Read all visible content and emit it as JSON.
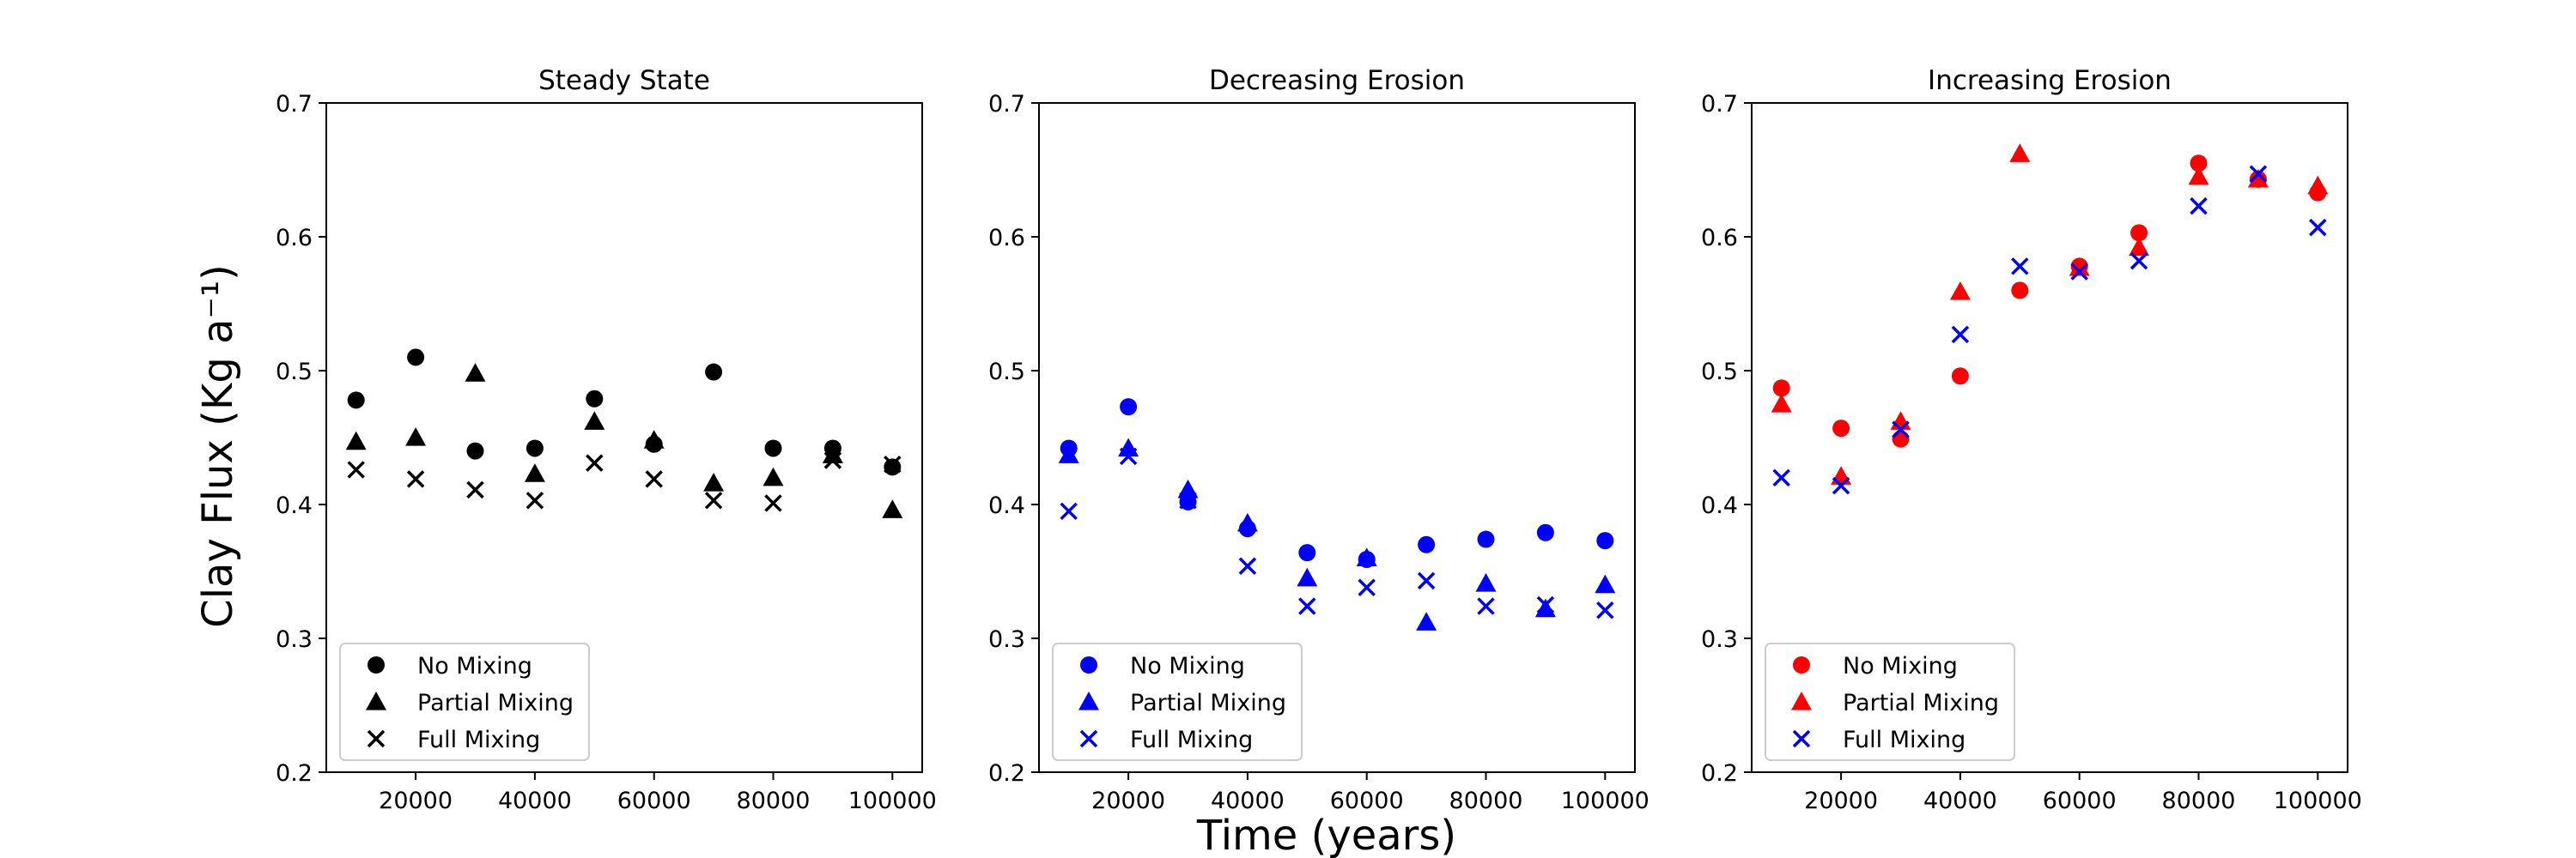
{
  "figure": {
    "ylabel": "Clay Flux (Kg a⁻¹)",
    "xlabel": "Time (years)"
  },
  "chart_data": [
    {
      "type": "scatter",
      "title": "Steady State",
      "xlabel": "",
      "ylabel": "",
      "xlim": [
        5000,
        105000
      ],
      "ylim": [
        0.2,
        0.7
      ],
      "xticks": [
        20000,
        40000,
        60000,
        80000,
        100000
      ],
      "yticks": [
        0.2,
        0.3,
        0.4,
        0.5,
        0.6,
        0.7
      ],
      "grid": false,
      "legend_position": "lower-left",
      "x": [
        10000,
        20000,
        30000,
        40000,
        50000,
        60000,
        70000,
        80000,
        90000,
        100000
      ],
      "series": [
        {
          "name": "No Mixing",
          "marker": "circle",
          "color": "#000000",
          "values": [
            0.478,
            0.51,
            0.44,
            0.442,
            0.479,
            0.445,
            0.499,
            0.442,
            0.442,
            0.428
          ]
        },
        {
          "name": "Partial Mixing",
          "marker": "triangle",
          "color": "#000000",
          "values": [
            0.447,
            0.45,
            0.498,
            0.423,
            0.462,
            0.448,
            0.416,
            0.42,
            0.437,
            0.396
          ]
        },
        {
          "name": "Full Mixing",
          "marker": "x",
          "color": "#000000",
          "values": [
            0.426,
            0.419,
            0.411,
            0.403,
            0.431,
            0.419,
            0.403,
            0.401,
            0.433,
            0.43
          ]
        }
      ]
    },
    {
      "type": "scatter",
      "title": "Decreasing Erosion",
      "xlabel": "",
      "ylabel": "",
      "xlim": [
        5000,
        105000
      ],
      "ylim": [
        0.2,
        0.7
      ],
      "xticks": [
        20000,
        40000,
        60000,
        80000,
        100000
      ],
      "yticks": [
        0.2,
        0.3,
        0.4,
        0.5,
        0.6,
        0.7
      ],
      "grid": false,
      "legend_position": "lower-left",
      "x": [
        10000,
        20000,
        30000,
        40000,
        50000,
        60000,
        70000,
        80000,
        90000,
        100000
      ],
      "series": [
        {
          "name": "No Mixing",
          "marker": "circle",
          "color": "#0000ff",
          "values": [
            0.442,
            0.473,
            0.402,
            0.382,
            0.364,
            0.359,
            0.37,
            0.374,
            0.379,
            0.373
          ]
        },
        {
          "name": "Partial Mixing",
          "marker": "triangle",
          "color": "#0000ff",
          "values": [
            0.437,
            0.442,
            0.411,
            0.386,
            0.345,
            0.36,
            0.312,
            0.341,
            0.322,
            0.34
          ]
        },
        {
          "name": "Full Mixing",
          "marker": "x",
          "color": "#0000ff",
          "values": [
            0.395,
            0.436,
            0.403,
            0.354,
            0.324,
            0.338,
            0.343,
            0.324,
            0.325,
            0.321
          ]
        }
      ]
    },
    {
      "type": "scatter",
      "title": "Increasing Erosion",
      "xlabel": "",
      "ylabel": "",
      "xlim": [
        5000,
        105000
      ],
      "ylim": [
        0.2,
        0.7
      ],
      "xticks": [
        20000,
        40000,
        60000,
        80000,
        100000
      ],
      "yticks": [
        0.2,
        0.3,
        0.4,
        0.5,
        0.6,
        0.7
      ],
      "grid": false,
      "legend_position": "lower-left",
      "x": [
        10000,
        20000,
        30000,
        40000,
        50000,
        60000,
        70000,
        80000,
        90000,
        100000
      ],
      "series": [
        {
          "name": "No Mixing",
          "marker": "circle",
          "color": "#ff0000",
          "values": [
            0.487,
            0.457,
            0.449,
            0.496,
            0.56,
            0.578,
            0.603,
            0.655,
            0.643,
            0.633
          ]
        },
        {
          "name": "Partial Mixing",
          "marker": "triangle",
          "color": "#ff0000",
          "values": [
            0.475,
            0.421,
            0.462,
            0.559,
            0.662,
            0.577,
            0.592,
            0.645,
            0.643,
            0.638
          ]
        },
        {
          "name": "Full Mixing",
          "marker": "x",
          "color": "#0000ff",
          "values": [
            0.42,
            0.414,
            0.456,
            0.527,
            0.578,
            0.574,
            0.582,
            0.623,
            0.647,
            0.607
          ]
        }
      ]
    }
  ]
}
